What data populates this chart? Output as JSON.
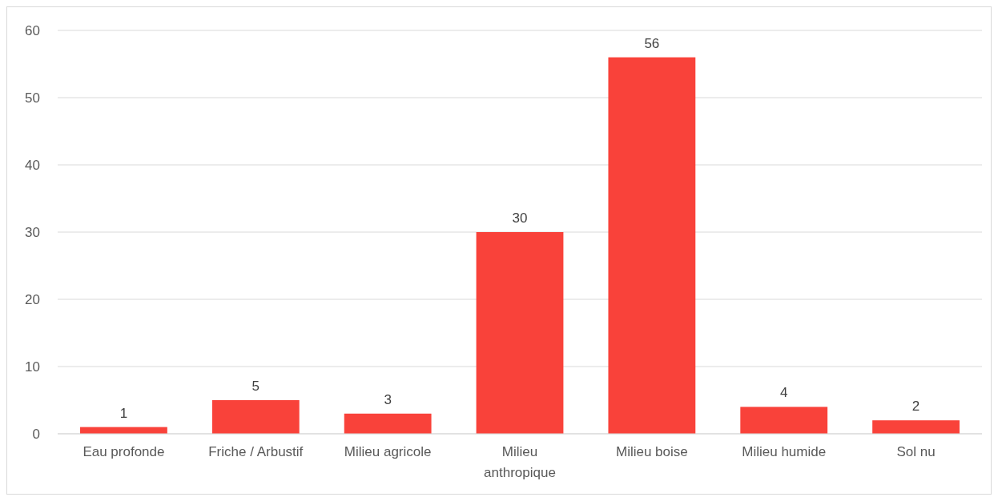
{
  "chart_data": {
    "type": "bar",
    "categories": [
      "Eau profonde",
      "Friche / Arbustif",
      "Milieu agricole",
      "Milieu anthropique",
      "Milieu boise",
      "Milieu humide",
      "Sol nu"
    ],
    "values": [
      1,
      5,
      3,
      30,
      56,
      4,
      2
    ],
    "color": "#f9423a",
    "ylim": [
      0,
      60
    ],
    "yticks": [
      0,
      10,
      20,
      30,
      40,
      50,
      60
    ],
    "grid": "y",
    "data_labels": true
  }
}
